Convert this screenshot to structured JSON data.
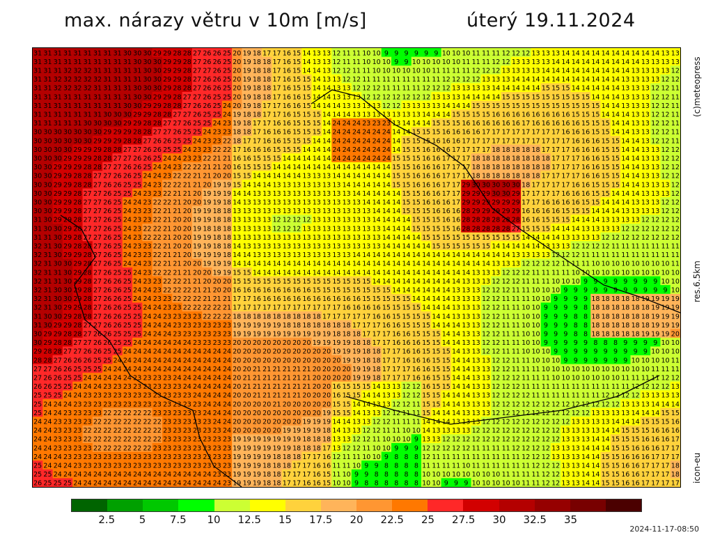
{
  "header": {
    "title_left": "max. nárazy větru v 10m [m/s]",
    "title_right": "úterý 19.11.2024"
  },
  "side_labels": {
    "copyright": "(c)meteopress",
    "resolution": "res.6.5km",
    "model": "icon-eu"
  },
  "timestamp": "2024-11-17-08:50",
  "map": {
    "rows": 50,
    "cols": 65,
    "background_color": "#d8ec3c"
  },
  "legend": {
    "colors": [
      "#006400",
      "#00a000",
      "#00c800",
      "#00ff00",
      "#ccff33",
      "#ffff00",
      "#ffd23c",
      "#ffb45a",
      "#ff9632",
      "#ff7800",
      "#ff2828",
      "#d20000",
      "#b40000",
      "#960000",
      "#780000",
      "#4b0000"
    ],
    "tick_labels": [
      "2.5",
      "5",
      "7.5",
      "10",
      "12.5",
      "15",
      "17.5",
      "20",
      "22.5",
      "25",
      "27.5",
      "30",
      "32.5",
      "35"
    ]
  }
}
